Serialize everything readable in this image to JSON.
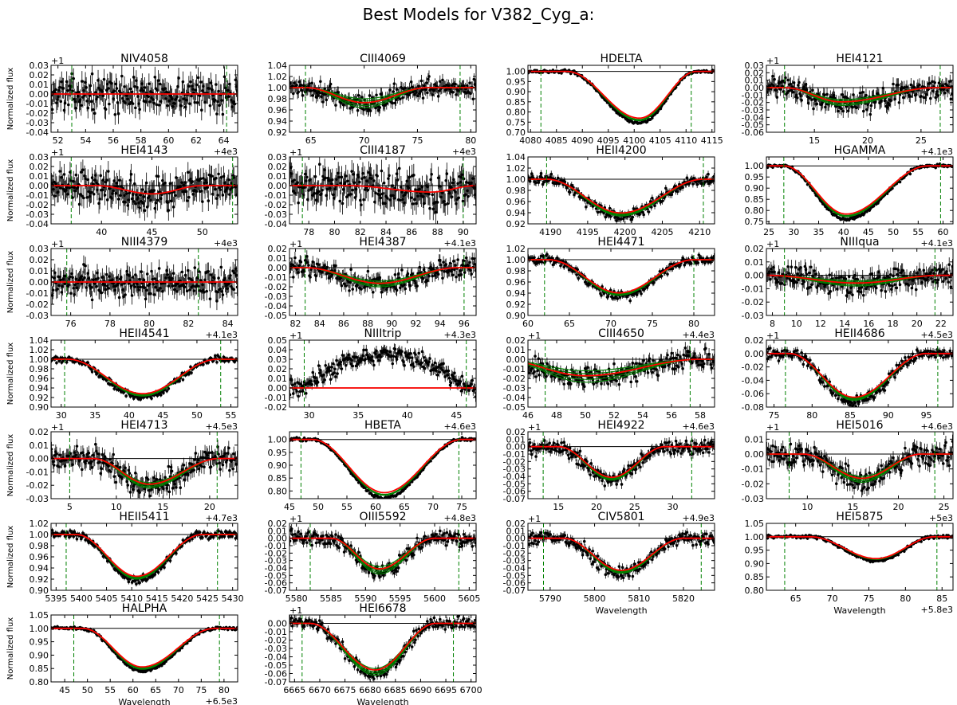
{
  "figure_title": "Best Models for V382_Cyg_a:",
  "axis_labels": {
    "y": "Normalized flux",
    "x": "Wavelength"
  },
  "colors": {
    "data": "#000000",
    "model": "#ff0000",
    "fits": "#008000",
    "bounds": "#008000",
    "reference": "#000000"
  },
  "chart_data": [
    {
      "type": "line",
      "title": "NIV4058",
      "xlim": [
        51.5,
        65
      ],
      "xticks": [
        52,
        54,
        56,
        58,
        60,
        62,
        64
      ],
      "ylim": [
        -0.04,
        0.03
      ],
      "yticks": [
        -0.04,
        -0.03,
        -0.02,
        -0.01,
        0.0,
        0.01,
        0.02,
        0.03
      ],
      "y_offset": "+1",
      "x_offset": "+4e3",
      "bounds": [
        53,
        64.2
      ],
      "profile": {
        "start": 53,
        "end": 64.2,
        "center": 58.6,
        "depth": 0.0
      },
      "noise": 0.012,
      "fit_spread": 0
    },
    {
      "type": "line",
      "title": "CIII4069",
      "xlim": [
        63,
        80.5
      ],
      "xticks": [
        65,
        70,
        75,
        80
      ],
      "ylim": [
        0.92,
        1.04
      ],
      "yticks": [
        0.92,
        0.94,
        0.96,
        0.98,
        1.0,
        1.02,
        1.04
      ],
      "y_offset": "",
      "x_offset": "+4e3",
      "bounds": [
        64.5,
        79
      ],
      "profile": {
        "start": 64.5,
        "end": 76,
        "center": 70,
        "depth": 0.028
      },
      "noise": 0.012,
      "fit_spread": 0.008
    },
    {
      "type": "line",
      "title": "HDELTA",
      "xlim": [
        4079.5,
        4115.5
      ],
      "xticks": [
        4080,
        4085,
        4090,
        4095,
        4100,
        4105,
        4110,
        4115
      ],
      "ylim": [
        0.7,
        1.03
      ],
      "yticks": [
        0.7,
        0.75,
        0.8,
        0.85,
        0.9,
        0.95,
        1.0
      ],
      "y_offset": "",
      "x_offset": "",
      "bounds": [
        4082,
        4111
      ],
      "profile": {
        "start": 4087,
        "end": 4112,
        "center": 4101,
        "depth": 0.24
      },
      "noise": 0.005,
      "fit_spread": 0.003
    },
    {
      "type": "line",
      "title": "HEI4121",
      "xlim": [
        10.5,
        28
      ],
      "xticks": [
        15,
        20,
        25
      ],
      "ylim": [
        -0.06,
        0.03
      ],
      "yticks": [
        -0.06,
        -0.05,
        -0.04,
        -0.03,
        -0.02,
        -0.01,
        0.0,
        0.01,
        0.02,
        0.03
      ],
      "y_offset": "+1",
      "x_offset": "+4.1e3",
      "bounds": [
        12.2,
        26.8
      ],
      "profile": {
        "start": 12.2,
        "end": 26.5,
        "center": 17.5,
        "depth": 0.02
      },
      "noise": 0.01,
      "fit_spread": 0.004
    },
    {
      "type": "line",
      "title": "HEI4143",
      "xlim": [
        35,
        53.5
      ],
      "xticks": [
        40,
        45,
        50
      ],
      "ylim": [
        -0.04,
        0.03
      ],
      "yticks": [
        -0.04,
        -0.03,
        -0.02,
        -0.01,
        0.0,
        0.01,
        0.02,
        0.03
      ],
      "y_offset": "+1",
      "x_offset": "+4e3",
      "bounds": [
        37,
        53
      ],
      "profile": {
        "start": 39.5,
        "end": 50,
        "center": 45,
        "depth": 0.009
      },
      "noise": 0.012,
      "fit_spread": 0
    },
    {
      "type": "line",
      "title": "CIII4187",
      "xlim": [
        76.5,
        91
      ],
      "xticks": [
        78,
        80,
        82,
        84,
        86,
        88,
        90
      ],
      "ylim": [
        -0.04,
        0.03
      ],
      "yticks": [
        -0.04,
        -0.03,
        -0.02,
        -0.01,
        0.0,
        0.01,
        0.02,
        0.03
      ],
      "y_offset": "+1",
      "x_offset": "+4.1e3",
      "bounds": [
        77.5,
        90
      ],
      "profile": {
        "start": 81,
        "end": 91,
        "center": 87.5,
        "depth": 0.007
      },
      "noise": 0.013,
      "fit_spread": 0
    },
    {
      "type": "line",
      "title": "HEII4200",
      "xlim": [
        4187,
        4212
      ],
      "xticks": [
        4190,
        4195,
        4200,
        4205,
        4210
      ],
      "ylim": [
        0.92,
        1.04
      ],
      "yticks": [
        0.92,
        0.94,
        0.96,
        0.98,
        1.0,
        1.02,
        1.04
      ],
      "y_offset": "",
      "x_offset": "",
      "bounds": [
        4189.5,
        4210.5
      ],
      "profile": {
        "start": 4189.5,
        "end": 4210.5,
        "center": 4199.5,
        "depth": 0.063
      },
      "noise": 0.007,
      "fit_spread": 0.003
    },
    {
      "type": "line",
      "title": "HGAMMA",
      "xlim": [
        24.5,
        62
      ],
      "xticks": [
        25,
        30,
        35,
        40,
        45,
        50,
        55,
        60
      ],
      "ylim": [
        0.74,
        1.04
      ],
      "yticks": [
        0.75,
        0.8,
        0.85,
        0.9,
        0.95,
        1.0
      ],
      "y_offset": "",
      "x_offset": "+4.1e3",
      "bounds": [
        28,
        59.5
      ],
      "profile": {
        "start": 28,
        "end": 57,
        "center": 40.5,
        "depth": 0.225
      },
      "noise": 0.005,
      "fit_spread": 0.003
    },
    {
      "type": "line",
      "title": "NIII4379",
      "xlim": [
        75,
        84.5
      ],
      "xticks": [
        76,
        78,
        80,
        82,
        84
      ],
      "ylim": [
        -0.03,
        0.03
      ],
      "yticks": [
        -0.03,
        -0.02,
        -0.01,
        0.0,
        0.01,
        0.02,
        0.03
      ],
      "y_offset": "+1",
      "x_offset": "+4.1e3",
      "bounds": [
        75.8,
        82.5
      ],
      "profile": {
        "start": 75.8,
        "end": 84,
        "center": 80,
        "depth": 0.0
      },
      "noise": 0.009,
      "fit_spread": 0
    },
    {
      "type": "line",
      "title": "HEI4387",
      "xlim": [
        81.5,
        97
      ],
      "xticks": [
        82,
        84,
        86,
        88,
        90,
        92,
        94,
        96
      ],
      "ylim": [
        -0.05,
        0.02
      ],
      "yticks": [
        -0.05,
        -0.04,
        -0.03,
        -0.02,
        -0.01,
        0.0,
        0.01,
        0.02
      ],
      "y_offset": "+1",
      "x_offset": "+4.3e3",
      "bounds": [
        82.8,
        96
      ],
      "profile": {
        "start": 82.8,
        "end": 95.5,
        "center": 89,
        "depth": 0.017
      },
      "noise": 0.007,
      "fit_spread": 0.003
    },
    {
      "type": "line",
      "title": "HEI4471",
      "xlim": [
        60,
        82.5
      ],
      "xticks": [
        60,
        65,
        70,
        75,
        80
      ],
      "ylim": [
        0.9,
        1.02
      ],
      "yticks": [
        0.9,
        0.92,
        0.94,
        0.96,
        0.98,
        1.0,
        1.02
      ],
      "y_offset": "",
      "x_offset": "+4.4e3",
      "bounds": [
        62,
        80
      ],
      "profile": {
        "start": 62.5,
        "end": 80,
        "center": 71,
        "depth": 0.062
      },
      "noise": 0.006,
      "fit_spread": 0.002
    },
    {
      "type": "line",
      "title": "NIIIqua",
      "xlim": [
        7.5,
        23
      ],
      "xticks": [
        8,
        10,
        12,
        14,
        16,
        18,
        20,
        22
      ],
      "ylim": [
        -0.03,
        0.02
      ],
      "yticks": [
        -0.03,
        -0.02,
        -0.01,
        0.0,
        0.01,
        0.02
      ],
      "y_offset": "+1",
      "x_offset": "+4.5e3",
      "bounds": [
        9,
        21.5
      ],
      "profile": {
        "start": 7.5,
        "end": 22,
        "center": 15,
        "depth": 0.006
      },
      "noise": 0.006,
      "fit_spread": 0.002
    },
    {
      "type": "line",
      "title": "HEII4541",
      "xlim": [
        28.5,
        56
      ],
      "xticks": [
        30,
        35,
        40,
        45,
        50,
        55
      ],
      "ylim": [
        0.9,
        1.04
      ],
      "yticks": [
        0.9,
        0.92,
        0.94,
        0.96,
        0.98,
        1.0,
        1.02,
        1.04
      ],
      "y_offset": "",
      "x_offset": "+4.5e3",
      "bounds": [
        30.5,
        53.5
      ],
      "profile": {
        "start": 31,
        "end": 53,
        "center": 42,
        "depth": 0.075
      },
      "noise": 0.005,
      "fit_spread": 0.002
    },
    {
      "type": "line",
      "title": "NIIItrip",
      "xlim": [
        28,
        47
      ],
      "xticks": [
        30,
        35,
        40,
        45
      ],
      "ylim": [
        -0.02,
        0.05
      ],
      "yticks": [
        -0.02,
        -0.01,
        0.0,
        0.01,
        0.02,
        0.03,
        0.04,
        0.05
      ],
      "y_offset": "+1",
      "x_offset": "+4.6e3",
      "bounds": [
        29.5,
        46
      ],
      "profile": {
        "start": 28,
        "end": 47,
        "center": 37,
        "depth": 0.0
      },
      "noise": 0.006,
      "fit_spread": 0,
      "data_hump": 0.035
    },
    {
      "type": "line",
      "title": "CIII4650",
      "xlim": [
        46,
        59
      ],
      "xticks": [
        46,
        48,
        50,
        52,
        54,
        56,
        58
      ],
      "ylim": [
        -0.05,
        0.02
      ],
      "yticks": [
        -0.05,
        -0.04,
        -0.03,
        -0.02,
        -0.01,
        0.0,
        0.01,
        0.02
      ],
      "y_offset": "+1",
      "x_offset": "+4.6e3",
      "bounds": [
        47.2,
        57.3
      ],
      "profile": {
        "start": 44,
        "end": 58,
        "center": 50,
        "depth": 0.018
      },
      "noise": 0.007,
      "fit_spread": 0.006
    },
    {
      "type": "line",
      "title": "HEII4686",
      "xlim": [
        74,
        98.5
      ],
      "xticks": [
        75,
        80,
        85,
        90,
        95
      ],
      "ylim": [
        -0.08,
        0.02
      ],
      "yticks": [
        -0.08,
        -0.06,
        -0.04,
        -0.02,
        0.0,
        0.02
      ],
      "y_offset": "+1",
      "x_offset": "+4.6e3",
      "bounds": [
        76.5,
        96.5
      ],
      "profile": {
        "start": 77,
        "end": 95,
        "center": 85.5,
        "depth": 0.068
      },
      "noise": 0.006,
      "fit_spread": 0.002
    },
    {
      "type": "line",
      "title": "HEI4713",
      "xlim": [
        3,
        23
      ],
      "xticks": [
        5,
        10,
        15,
        20
      ],
      "ylim": [
        -0.03,
        0.02
      ],
      "yticks": [
        -0.03,
        -0.02,
        -0.01,
        0.0,
        0.01,
        0.02
      ],
      "y_offset": "+1",
      "x_offset": "+4.7e3",
      "bounds": [
        5,
        20.8
      ],
      "profile": {
        "start": 7.5,
        "end": 21,
        "center": 13.5,
        "depth": 0.02
      },
      "noise": 0.006,
      "fit_spread": 0.002
    },
    {
      "type": "line",
      "title": "HBETA",
      "xlim": [
        45,
        77.5
      ],
      "xticks": [
        45,
        50,
        55,
        60,
        65,
        70,
        75
      ],
      "ylim": [
        0.77,
        1.03
      ],
      "yticks": [
        0.8,
        0.85,
        0.9,
        0.95,
        1.0
      ],
      "y_offset": "",
      "x_offset": "+4.8e3",
      "bounds": [
        47,
        74.5
      ],
      "profile": {
        "start": 49,
        "end": 75,
        "center": 61.5,
        "depth": 0.215
      },
      "noise": 0.004,
      "fit_spread": 0.002
    },
    {
      "type": "line",
      "title": "HEI4922",
      "xlim": [
        11,
        35.5
      ],
      "xticks": [
        15,
        20,
        25,
        30
      ],
      "ylim": [
        -0.07,
        0.02
      ],
      "yticks": [
        -0.07,
        -0.06,
        -0.05,
        -0.04,
        -0.03,
        -0.02,
        -0.01,
        0.0,
        0.01,
        0.02
      ],
      "y_offset": "+1",
      "x_offset": "+4.9e3",
      "bounds": [
        13,
        32.5
      ],
      "profile": {
        "start": 15,
        "end": 29,
        "center": 22,
        "depth": 0.043
      },
      "noise": 0.007,
      "fit_spread": 0.002
    },
    {
      "type": "line",
      "title": "HEI5016",
      "xlim": [
        5.5,
        26
      ],
      "xticks": [
        10,
        15,
        20,
        25
      ],
      "ylim": [
        -0.03,
        0.015
      ],
      "yticks": [
        -0.03,
        -0.02,
        -0.01,
        0.0,
        0.01
      ],
      "y_offset": "+1",
      "x_offset": "+5e3",
      "bounds": [
        8,
        24
      ],
      "profile": {
        "start": 9.5,
        "end": 22.5,
        "center": 16,
        "depth": 0.017
      },
      "noise": 0.005,
      "fit_spread": 0.002
    },
    {
      "type": "line",
      "title": "HEII5411",
      "xlim": [
        5394,
        5431
      ],
      "xticks": [
        5395,
        5400,
        5405,
        5410,
        5415,
        5420,
        5425,
        5430
      ],
      "ylim": [
        0.9,
        1.02
      ],
      "yticks": [
        0.9,
        0.92,
        0.94,
        0.96,
        0.98,
        1.0,
        1.02
      ],
      "y_offset": "",
      "x_offset": "",
      "bounds": [
        5397,
        5427
      ],
      "profile": {
        "start": 5399,
        "end": 5424,
        "center": 5411,
        "depth": 0.078
      },
      "noise": 0.005,
      "fit_spread": 0.002
    },
    {
      "type": "line",
      "title": "OIII5592",
      "xlim": [
        5579,
        5606
      ],
      "xticks": [
        5580,
        5585,
        5590,
        5595,
        5600,
        5605
      ],
      "ylim": [
        -0.07,
        0.02
      ],
      "yticks": [
        -0.07,
        -0.06,
        -0.05,
        -0.04,
        -0.03,
        -0.02,
        -0.01,
        0.0,
        0.01,
        0.02
      ],
      "y_offset": "+1",
      "x_offset": "",
      "bounds": [
        5582,
        5603.5
      ],
      "profile": {
        "start": 5585,
        "end": 5600,
        "center": 5592,
        "depth": 0.043
      },
      "noise": 0.007,
      "fit_spread": 0.005
    },
    {
      "type": "line",
      "title": "CIV5801",
      "xlim": [
        5785,
        5827
      ],
      "xticks": [
        5790,
        5800,
        5810,
        5820
      ],
      "ylim": [
        -0.07,
        0.02
      ],
      "yticks": [
        -0.07,
        -0.06,
        -0.05,
        -0.04,
        -0.03,
        -0.02,
        -0.01,
        0.0,
        0.01,
        0.02
      ],
      "y_offset": "+1",
      "x_offset": "",
      "bounds": [
        5788.5,
        5824
      ],
      "profile": {
        "start": 5793,
        "end": 5820,
        "center": 5806,
        "depth": 0.045
      },
      "noise": 0.006,
      "fit_spread": 0.002,
      "xlabel": true
    },
    {
      "type": "line",
      "title": "HEI5875",
      "xlim": [
        61,
        86.5
      ],
      "xticks": [
        65,
        70,
        75,
        80,
        85
      ],
      "ylim": [
        0.8,
        1.05
      ],
      "yticks": [
        0.8,
        0.85,
        0.9,
        0.95,
        1.0,
        1.05
      ],
      "y_offset": "",
      "x_offset": "+5.8e3",
      "bounds": [
        63.5,
        84.3
      ],
      "profile": {
        "start": 67,
        "end": 84,
        "center": 76,
        "depth": 0.085
      },
      "noise": 0.004,
      "fit_spread": 0,
      "xlabel": true
    },
    {
      "type": "line",
      "title": "HALPHA",
      "xlim": [
        42,
        83
      ],
      "xticks": [
        45,
        50,
        55,
        60,
        65,
        70,
        75,
        80
      ],
      "ylim": [
        0.8,
        1.05
      ],
      "yticks": [
        0.8,
        0.85,
        0.9,
        0.95,
        1.0,
        1.05
      ],
      "y_offset": "",
      "x_offset": "+6.5e3",
      "bounds": [
        47,
        79
      ],
      "profile": {
        "start": 49,
        "end": 78,
        "center": 62,
        "depth": 0.15
      },
      "noise": 0.004,
      "fit_spread": 0.003,
      "xlabel": true
    },
    {
      "type": "line",
      "title": "HEI6678",
      "xlim": [
        6664,
        6701
      ],
      "xticks": [
        6665,
        6670,
        6675,
        6680,
        6685,
        6690,
        6695,
        6700
      ],
      "ylim": [
        -0.07,
        0.01
      ],
      "yticks": [
        -0.07,
        -0.06,
        -0.05,
        -0.04,
        -0.03,
        -0.02,
        -0.01,
        0.0
      ],
      "y_offset": "+1",
      "x_offset": "",
      "bounds": [
        6666.5,
        6696.5
      ],
      "profile": {
        "start": 6668,
        "end": 6693,
        "center": 6681,
        "depth": 0.058
      },
      "noise": 0.005,
      "fit_spread": 0.004,
      "xlabel": true
    }
  ]
}
